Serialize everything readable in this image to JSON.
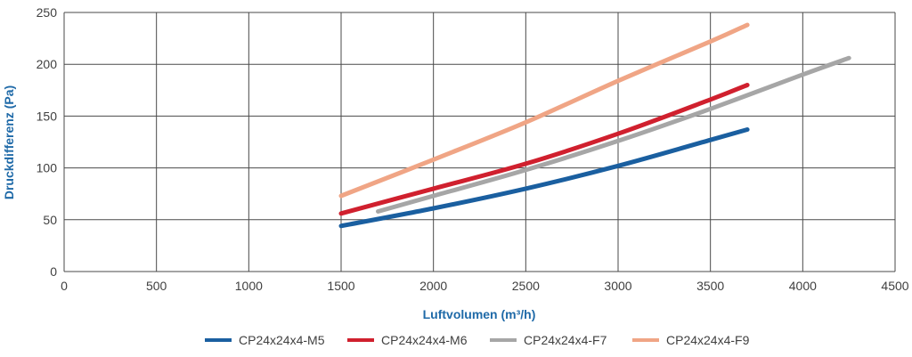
{
  "chart_data": {
    "type": "line",
    "title": "",
    "xlabel": "Luftvolumen (m³/h)",
    "ylabel": "Druckdifferenz (Pa)",
    "xlim": [
      0,
      4500
    ],
    "ylim": [
      0,
      250
    ],
    "xticks": [
      0,
      500,
      1000,
      1500,
      2000,
      2500,
      3000,
      3500,
      4000,
      4500
    ],
    "yticks": [
      0,
      50,
      100,
      150,
      200,
      250
    ],
    "grid": true,
    "legend_position": "bottom",
    "series": [
      {
        "name": "CP24x24x4-M5",
        "color": "#1a5fa0",
        "x": [
          1500,
          2000,
          2500,
          3000,
          3500,
          3700
        ],
        "y": [
          44,
          61,
          80,
          102,
          127,
          137
        ]
      },
      {
        "name": "CP24x24x4-M6",
        "color": "#d0202e",
        "x": [
          1500,
          2000,
          2500,
          3000,
          3500,
          3700
        ],
        "y": [
          56,
          80,
          104,
          133,
          166,
          180
        ]
      },
      {
        "name": "CP24x24x4-F7",
        "color": "#a6a6a6",
        "x": [
          1700,
          2000,
          2500,
          3000,
          3500,
          4000,
          4250
        ],
        "y": [
          58,
          73,
          98,
          126,
          157,
          190,
          206
        ]
      },
      {
        "name": "CP24x24x4-F9",
        "color": "#f0a585",
        "x": [
          1500,
          2000,
          2500,
          3000,
          3500,
          3700
        ],
        "y": [
          73,
          108,
          144,
          184,
          222,
          238
        ]
      }
    ]
  }
}
